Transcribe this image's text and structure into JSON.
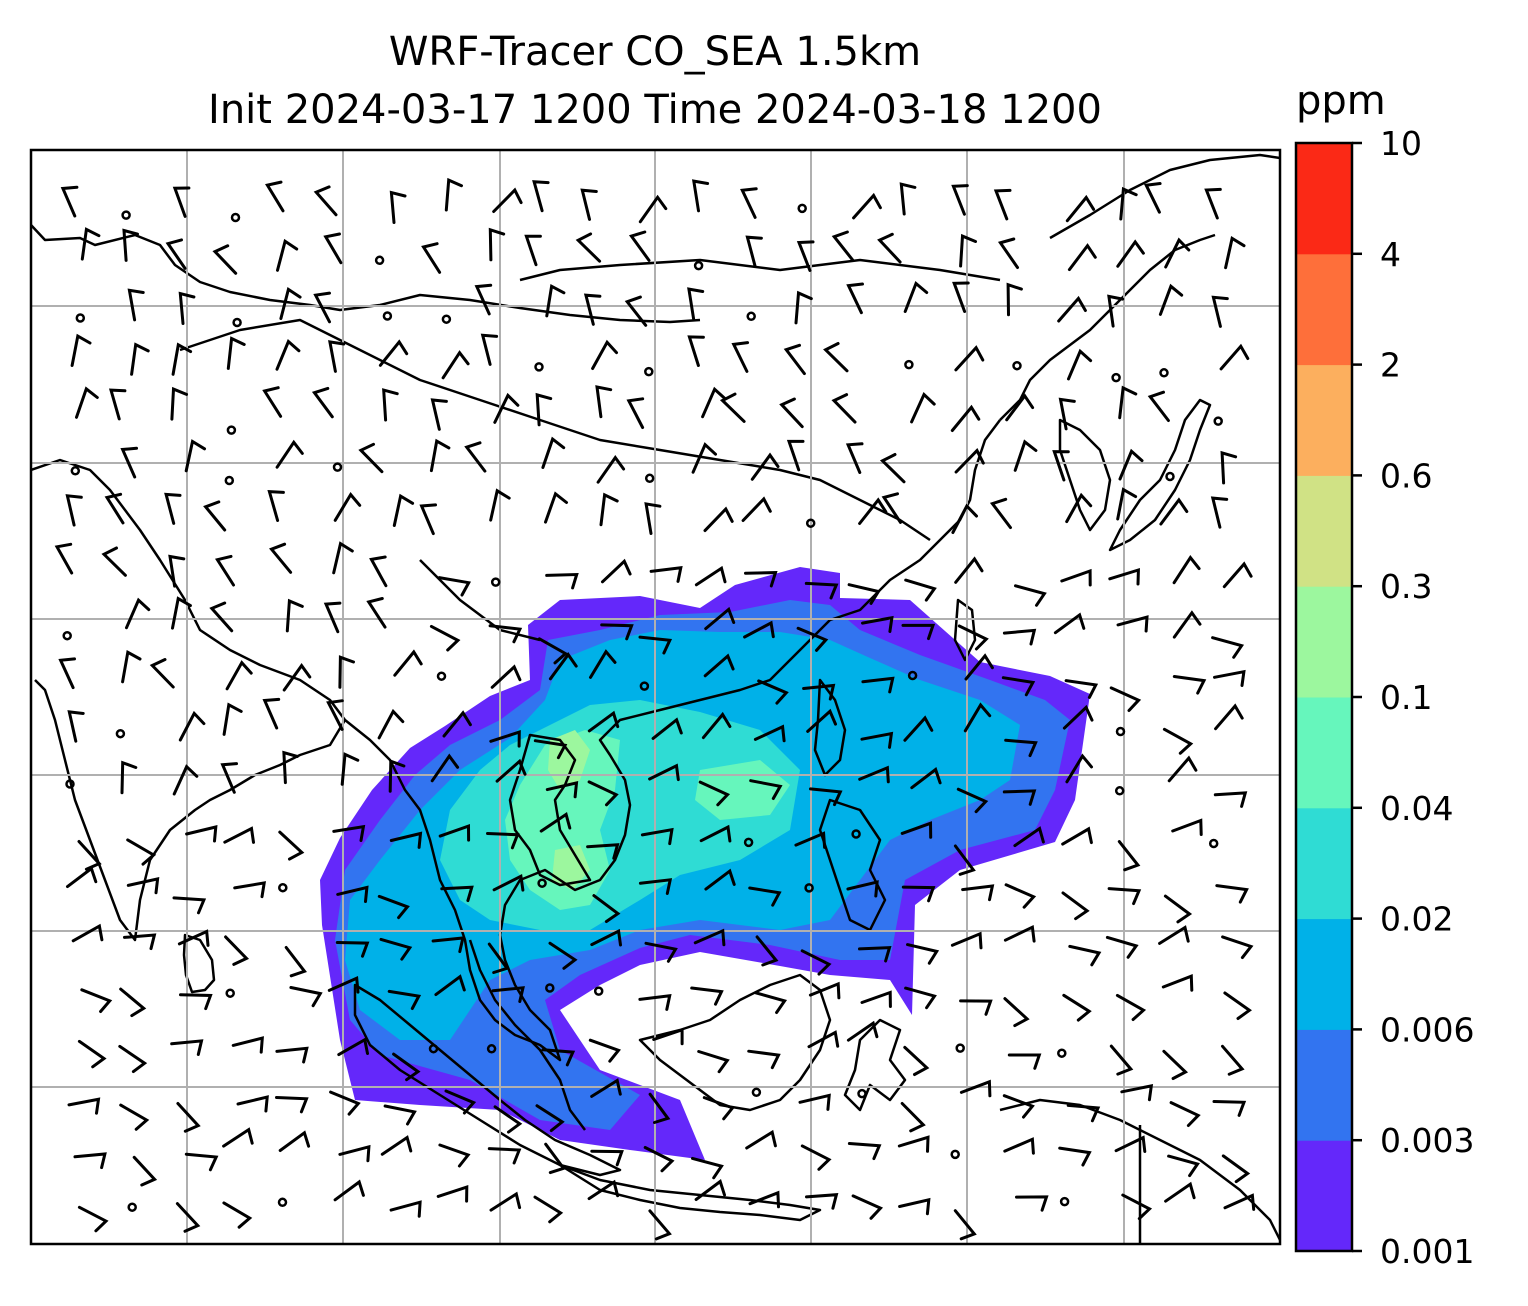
{
  "title": {
    "line1": "WRF-Tracer CO_SEA 1.5km",
    "line2": "Init 2024-03-17 1200 Time 2024-03-18 1200"
  },
  "colorbar": {
    "unit": "ppm",
    "levels": [
      "0.001",
      "0.003",
      "0.006",
      "0.02",
      "0.04",
      "0.1",
      "0.3",
      "0.6",
      "2",
      "4",
      "10"
    ],
    "colors": [
      "#6428fa",
      "#3274f0",
      "#00b1e8",
      "#2fdcd4",
      "#66f6bc",
      "#9cf79e",
      "#d0e285",
      "#fcaf5e",
      "#fe6f3a",
      "#fb2916"
    ]
  },
  "map": {
    "gridlines": true,
    "wind_barbs": true,
    "coastlines": true,
    "projection": "mercator"
  }
}
